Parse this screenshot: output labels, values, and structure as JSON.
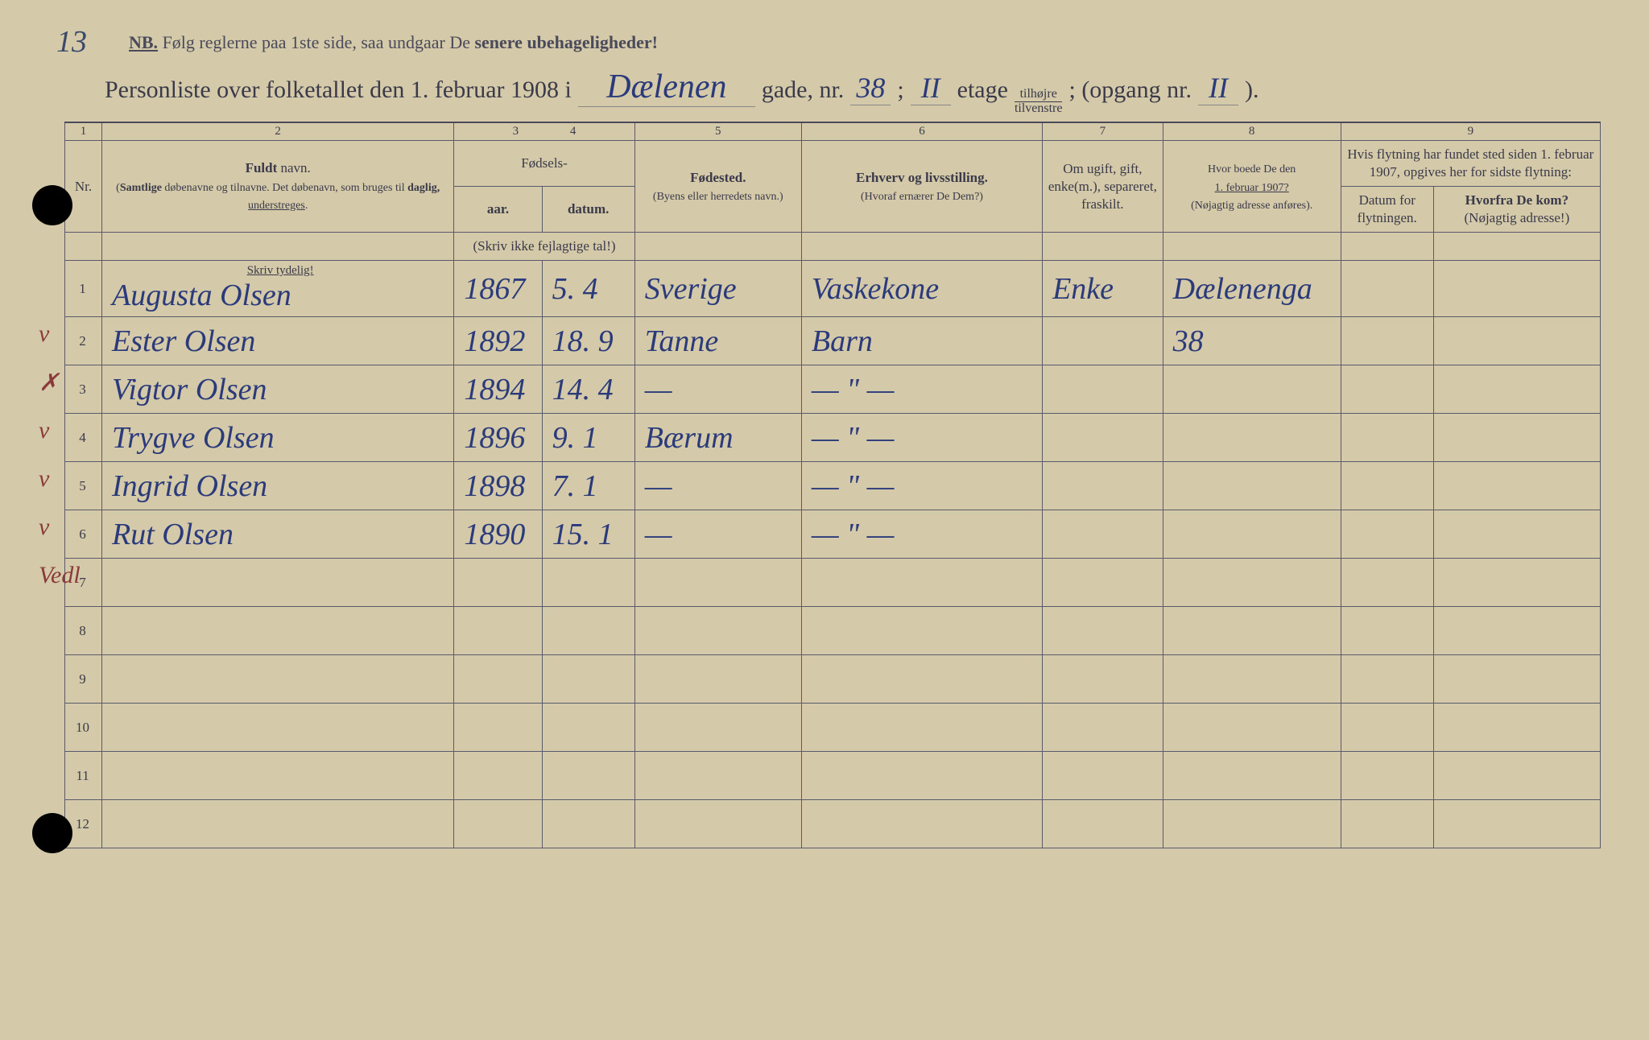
{
  "page_corner_number": "13",
  "nb_text": {
    "nb": "NB.",
    "line": "Følg reglerne paa 1ste side, saa undgaar De",
    "bold_part": "senere ubehageligheder!"
  },
  "title": {
    "prefix": "Personliste over folketallet den 1. februar 1908 i",
    "street": "Dælenen",
    "gade_label": "gade, nr.",
    "street_nr": "38",
    "semicolon": ";",
    "floor": "II",
    "etage_label": "etage",
    "tilhojre": "tilhøjre",
    "tilvenstre": "tilvenstre",
    "opgang_label": "; (opgang nr.",
    "opgang": "II",
    "close": ")."
  },
  "column_numbers": [
    "1",
    "2",
    "3",
    "4",
    "5",
    "6",
    "7",
    "8",
    "9"
  ],
  "headers": {
    "nr": "Nr.",
    "name_bold": "Fuldt",
    "name_rest": "navn.",
    "name_sub": "(Samtlige døbenavne og tilnavne. Det døbenavn, som bruges til daglig, understreges.",
    "fodsels": "Fødsels-",
    "aar": "aar.",
    "datum": "datum.",
    "fodsels_sub": "(Skriv ikke fejlagtige tal!)",
    "fodested": "Fødested.",
    "fodested_sub": "(Byens eller herredets navn.)",
    "erhverv": "Erhverv og livsstilling.",
    "erhverv_sub": "(Hvoraf ernærer De Dem?)",
    "status": "Om ugift, gift, enke(m.), separeret, fraskilt.",
    "boede": "Hvor boede De den",
    "boede_date": "1. februar 1907?",
    "boede_sub": "(Nøjagtig adresse anføres).",
    "flytning": "Hvis flytning har fundet sted siden 1. februar 1907, opgives her for sidste flytning:",
    "flyt_datum": "Datum for flytningen.",
    "flyt_hvorfra": "Hvorfra De kom?",
    "flyt_hvorfra_sub": "(Nøjagtig adresse!)",
    "skriv_tydelig": "Skriv tydelig!"
  },
  "rows": [
    {
      "nr": "1",
      "mark": "v",
      "name": "Augusta Olsen",
      "year": "1867",
      "date": "5. 4",
      "place": "Sverige",
      "occupation": "Vaskekone",
      "status": "Enke",
      "residence": "Dælenenga",
      "move_date": "",
      "move_from": ""
    },
    {
      "nr": "2",
      "mark": "✗",
      "name": "Ester Olsen",
      "year": "1892",
      "date": "18. 9",
      "place": "Tanne",
      "occupation": "Barn",
      "status": "",
      "residence": "38",
      "move_date": "",
      "move_from": ""
    },
    {
      "nr": "3",
      "mark": "v",
      "name": "Vigtor Olsen",
      "year": "1894",
      "date": "14. 4",
      "place": "—",
      "occupation": "— \" —",
      "status": "",
      "residence": "",
      "move_date": "",
      "move_from": ""
    },
    {
      "nr": "4",
      "mark": "v",
      "name": "Trygve Olsen",
      "year": "1896",
      "date": "9. 1",
      "place": "Bærum",
      "occupation": "— \" —",
      "status": "",
      "residence": "",
      "move_date": "",
      "move_from": ""
    },
    {
      "nr": "5",
      "mark": "v",
      "name": "Ingrid Olsen",
      "year": "1898",
      "date": "7. 1",
      "place": "—",
      "occupation": "— \" —",
      "status": "",
      "residence": "",
      "move_date": "",
      "move_from": ""
    },
    {
      "nr": "6",
      "mark": "Vedl",
      "name": "Rut Olsen",
      "year": "1890",
      "date": "15. 1",
      "place": "—",
      "occupation": "— \" —",
      "status": "",
      "residence": "",
      "move_date": "",
      "move_from": ""
    }
  ],
  "empty_rows": [
    "7",
    "8",
    "9",
    "10",
    "11",
    "12"
  ],
  "colors": {
    "paper": "#d4c9a8",
    "ink_print": "#3a3a4a",
    "ink_hand": "#2a3a7a",
    "ink_red": "#c03030",
    "border": "#5a5a6a"
  }
}
